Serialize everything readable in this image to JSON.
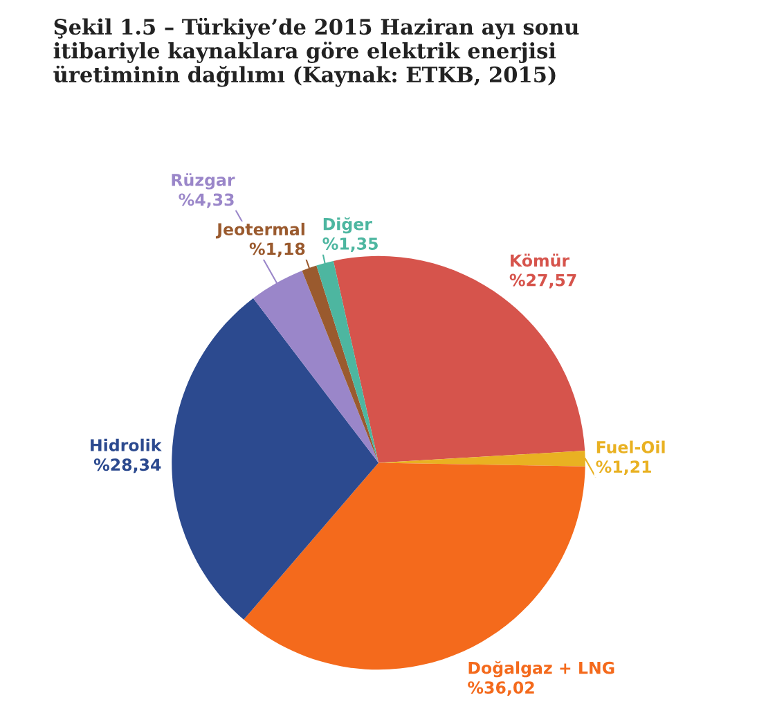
{
  "chart_data": {
    "type": "pie",
    "title": "Şekil 1.5 – Türkiye’de 2015 Haziran ayı sonu\nitibariyle kaynaklara göre elektrik enerjisi\nüretiminin dağılımı (Kaynak: ETKB, 2015)",
    "categories": [
      "Kömür",
      "Fuel-Oil",
      "Doğalgaz + LNG",
      "Hidrolik",
      "Rüzgar",
      "Jeotermal",
      "Diğer"
    ],
    "values": [
      27.57,
      1.21,
      36.02,
      28.34,
      4.33,
      1.18,
      1.35
    ],
    "value_labels": [
      "%27,57",
      "%1,21",
      "%36,02",
      "%28,34",
      "%4,33",
      "%1,18",
      "%1,35"
    ],
    "colors": [
      "#d6544c",
      "#e9b122",
      "#f46a1c",
      "#2c4a8f",
      "#9a86c9",
      "#9a5a2e",
      "#4db6a0"
    ],
    "legend": false
  }
}
